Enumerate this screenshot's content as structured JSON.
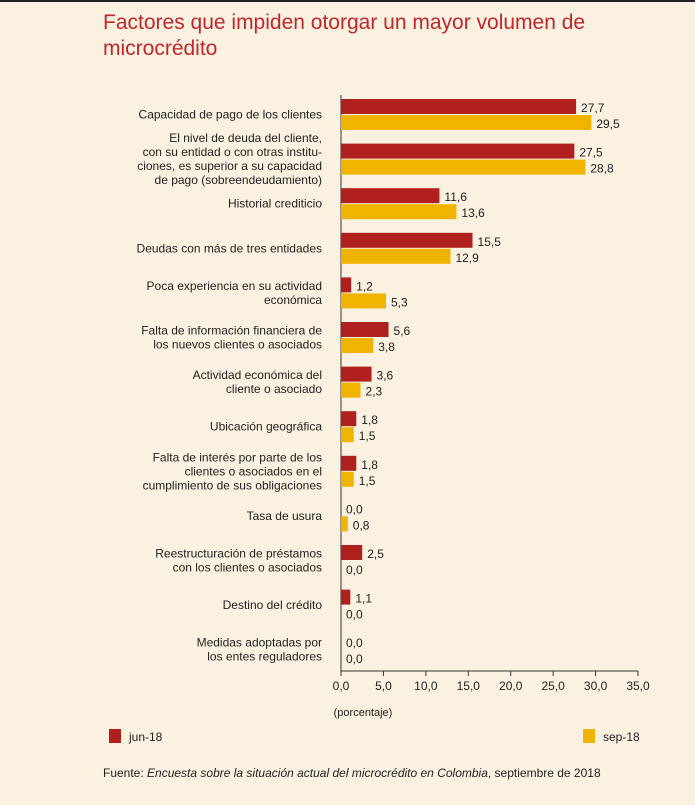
{
  "title": "Factores que impiden otorgar un mayor volumen de microcrédito",
  "colors": {
    "jun": "#b0201f",
    "sep": "#f0b400",
    "title": "#c0272d",
    "background": "#fbf1e1"
  },
  "source": {
    "prefix": "Fuente: ",
    "italic": "Encuesta sobre la situación actual del microcrédito en Colombia",
    "suffix": ", septiembre de 2018"
  },
  "chart_data": {
    "type": "bar",
    "orientation": "horizontal",
    "categories": [
      [
        "Capacidad de pago de los clientes"
      ],
      [
        "El nivel de deuda del cliente,",
        "con su entidad o con otras institu-",
        "ciones, es superior a su capacidad",
        "de pago (sobreendeudamiento)"
      ],
      [
        "Historial crediticio"
      ],
      [
        "Deudas con más de tres entidades"
      ],
      [
        "Poca experiencia en su actividad",
        "económica"
      ],
      [
        "Falta de información financiera de",
        "los nuevos clientes o asociados"
      ],
      [
        "Actividad económica del",
        "cliente o asociado"
      ],
      [
        "Ubicación geográfica"
      ],
      [
        "Falta de interés por parte de los",
        "clientes o asociados en el",
        "cumplimiento de sus obligaciones"
      ],
      [
        "Tasa de usura"
      ],
      [
        "Reestructuración de préstamos",
        "con los clientes o asociados"
      ],
      [
        "Destino del crédito"
      ],
      [
        "Medidas adoptadas por",
        "los entes reguladores"
      ]
    ],
    "series": [
      {
        "name": "jun-18",
        "color": "#b0201f",
        "values": [
          27.7,
          27.5,
          11.6,
          15.5,
          1.2,
          5.6,
          3.6,
          1.8,
          1.8,
          0.0,
          2.5,
          1.1,
          0.0
        ],
        "labels": [
          "27,7",
          "27,5",
          "11,6",
          "15,5",
          "1,2",
          "5,6",
          "3,6",
          "1,8",
          "1,8",
          "0,0",
          "2,5",
          "1,1",
          "0,0"
        ]
      },
      {
        "name": "sep-18",
        "color": "#f0b400",
        "values": [
          29.5,
          28.8,
          13.6,
          12.9,
          5.3,
          3.8,
          2.3,
          1.5,
          1.5,
          0.8,
          0.0,
          0.0,
          0.0
        ],
        "labels": [
          "29,5",
          "28,8",
          "13,6",
          "12,9",
          "5,3",
          "3,8",
          "2,3",
          "1,5",
          "1,5",
          "0,8",
          "0,0",
          "0,0",
          "0,0"
        ]
      }
    ],
    "xlim": [
      0,
      35
    ],
    "xticks": [
      "0,0",
      "5,0",
      "10,0",
      "15,0",
      "20,0",
      "25,0",
      "30,0",
      "35,0"
    ],
    "xlabel": "(porcentaje)",
    "grid": false,
    "legend_position": "bottom"
  }
}
